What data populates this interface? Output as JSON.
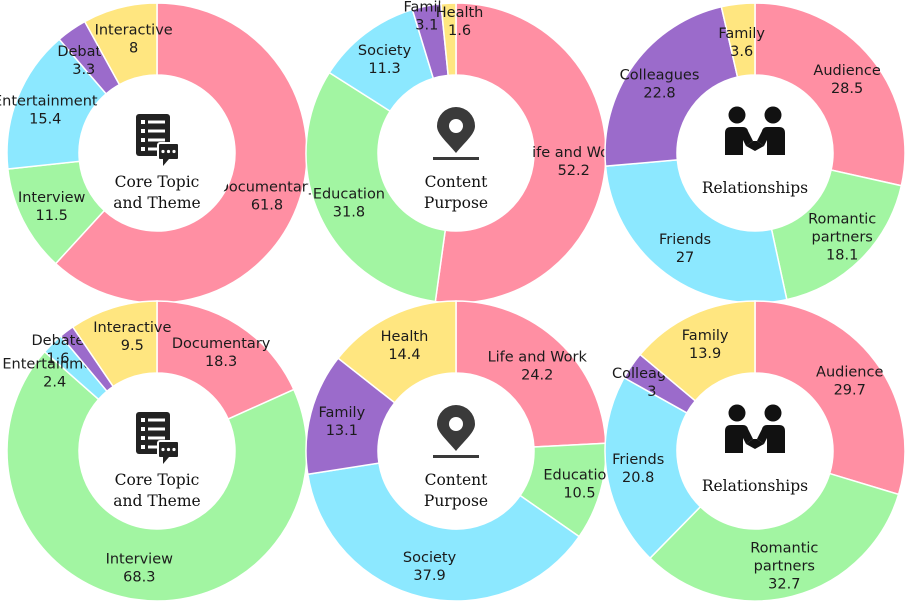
{
  "colors": {
    "pink": "#FF8FA3",
    "green": "#A2F5A2",
    "cyan": "#8CE8FF",
    "purple": "#9B6BCB",
    "yellow": "#FFE680",
    "icon": "#222222",
    "pin": "#3A3A3A"
  },
  "chart_data": [
    {
      "type": "pie",
      "center_icon": "document-chat-icon",
      "center_text": [
        "Core Topic",
        "and Theme"
      ],
      "slices": [
        {
          "label": "Documentary",
          "value": 61.8,
          "color": "pink"
        },
        {
          "label": "Interview",
          "value": 11.5,
          "color": "green"
        },
        {
          "label": "Entertainment",
          "value": 15.4,
          "color": "cyan"
        },
        {
          "label": "Debate",
          "value": 3.3,
          "color": "purple"
        },
        {
          "label": "Interactive",
          "value": 8,
          "color": "yellow"
        }
      ]
    },
    {
      "type": "pie",
      "center_icon": "location-pin-icon",
      "center_text": [
        "Content",
        "Purpose"
      ],
      "slices": [
        {
          "label": "Life and Work",
          "value": 52.2,
          "color": "pink"
        },
        {
          "label": "Education",
          "value": 31.8,
          "color": "green"
        },
        {
          "label": "Society",
          "value": 11.3,
          "color": "cyan"
        },
        {
          "label": "Family",
          "value": 3.1,
          "color": "purple"
        },
        {
          "label": "Health",
          "value": 1.6,
          "color": "yellow"
        }
      ]
    },
    {
      "type": "pie",
      "center_icon": "people-handshake-icon",
      "center_text": [
        "Relationships"
      ],
      "slices": [
        {
          "label": "Audience",
          "value": 28.5,
          "color": "pink"
        },
        {
          "label": "Romantic partners",
          "value": 18.1,
          "color": "green"
        },
        {
          "label": "Friends",
          "value": 27,
          "color": "cyan"
        },
        {
          "label": "Colleagues",
          "value": 22.8,
          "color": "purple"
        },
        {
          "label": "Family",
          "value": 3.6,
          "color": "yellow"
        }
      ]
    },
    {
      "type": "pie",
      "center_icon": "document-chat-icon",
      "center_text": [
        "Core Topic",
        "and Theme"
      ],
      "slices": [
        {
          "label": "Documentary",
          "value": 18.3,
          "color": "pink"
        },
        {
          "label": "Interview",
          "value": 68.3,
          "color": "green"
        },
        {
          "label": "Entertainment",
          "value": 2.4,
          "color": "cyan"
        },
        {
          "label": "Debate",
          "value": 1.6,
          "color": "purple"
        },
        {
          "label": "Interactive",
          "value": 9.5,
          "color": "yellow"
        }
      ]
    },
    {
      "type": "pie",
      "center_icon": "location-pin-icon",
      "center_text": [
        "Content",
        "Purpose"
      ],
      "slices": [
        {
          "label": "Life and Work",
          "value": 24.2,
          "color": "pink"
        },
        {
          "label": "Education",
          "value": 10.5,
          "color": "green"
        },
        {
          "label": "Society",
          "value": 37.9,
          "color": "cyan"
        },
        {
          "label": "Family",
          "value": 13.1,
          "color": "purple"
        },
        {
          "label": "Health",
          "value": 14.4,
          "color": "yellow"
        }
      ]
    },
    {
      "type": "pie",
      "center_icon": "people-handshake-icon",
      "center_text": [
        "Relationships"
      ],
      "slices": [
        {
          "label": "Audience",
          "value": 29.7,
          "color": "pink"
        },
        {
          "label": "Romantic partners",
          "value": 32.7,
          "color": "green"
        },
        {
          "label": "Friends",
          "value": 20.8,
          "color": "cyan"
        },
        {
          "label": "Colleagues",
          "value": 3,
          "color": "purple"
        },
        {
          "label": "Family",
          "value": 13.9,
          "color": "yellow"
        }
      ]
    }
  ]
}
